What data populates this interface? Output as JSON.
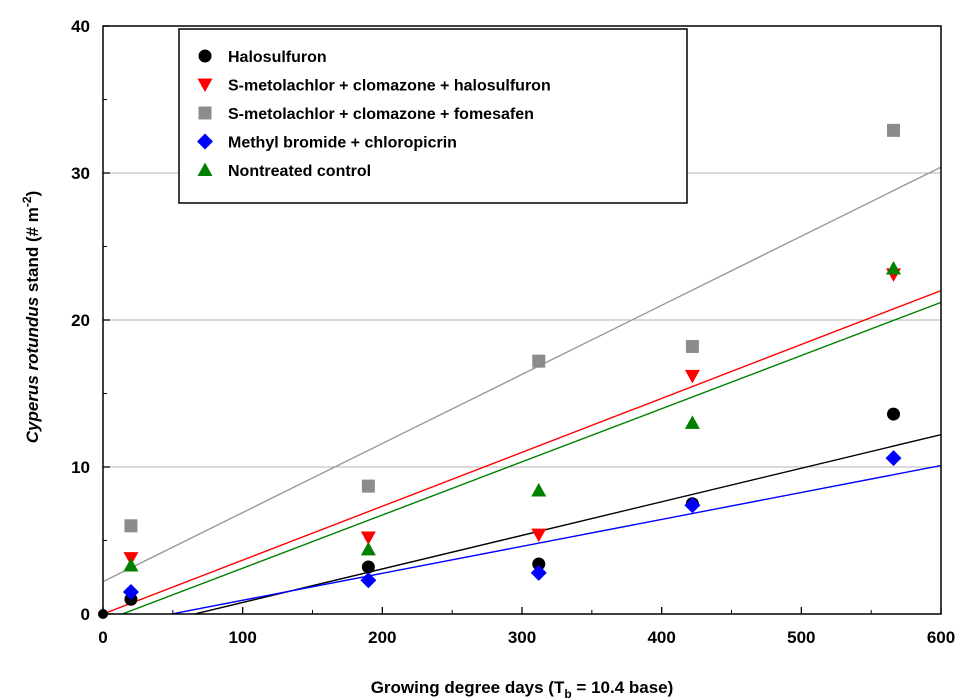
{
  "chart_data": {
    "type": "scatter",
    "xlabel_main": "Growing degree days (T",
    "xlabel_sub": "b",
    "xlabel_rest": " = 10.4 base)",
    "ylabel_pre": "Cyperus rotundus",
    "ylabel_mid": " stand (# m",
    "ylabel_sup": "-2",
    "ylabel_post": ")",
    "xlim": [
      0,
      600
    ],
    "ylim": [
      0,
      40
    ],
    "xticks": [
      0,
      100,
      200,
      300,
      400,
      500,
      600
    ],
    "yticks": [
      0,
      10,
      20,
      30,
      40
    ],
    "grid": "horizontal",
    "legend_position": "top-left",
    "series": [
      {
        "name": "Halosulfuron",
        "marker": "circle",
        "color": "#000000",
        "x": [
          20,
          190,
          312,
          422,
          566
        ],
        "y": [
          1.0,
          3.2,
          3.4,
          7.5,
          13.6
        ],
        "fit": {
          "x": [
            0,
            600
          ],
          "y": [
            -1.5,
            12.2
          ]
        }
      },
      {
        "name": "S-metolachlor + clomazone + halosulfuron",
        "marker": "triangle-down",
        "color": "#ff0000",
        "x": [
          20,
          190,
          312,
          422,
          566
        ],
        "y": [
          3.8,
          5.2,
          5.4,
          16.2,
          23.1
        ],
        "fit": {
          "x": [
            0,
            600
          ],
          "y": [
            0.0,
            22.0
          ]
        }
      },
      {
        "name": "S-metolachlor + clomazone + fomesafen",
        "marker": "square",
        "color": "#8c8c8c",
        "x": [
          20,
          190,
          312,
          422,
          566
        ],
        "y": [
          6.0,
          8.7,
          17.2,
          18.2,
          32.9
        ],
        "fit": {
          "x": [
            0,
            600
          ],
          "y": [
            2.2,
            30.4
          ]
        }
      },
      {
        "name": "Methyl bromide + chloropicrin",
        "marker": "diamond",
        "color": "#0000ff",
        "x": [
          20,
          190,
          312,
          422,
          566
        ],
        "y": [
          1.5,
          2.3,
          2.8,
          7.4,
          10.6
        ],
        "fit": {
          "x": [
            0,
            600
          ],
          "y": [
            -0.9,
            10.1
          ]
        }
      },
      {
        "name": "Nontreated control",
        "marker": "triangle-up",
        "color": "#008000",
        "x": [
          20,
          190,
          312,
          422,
          566
        ],
        "y": [
          3.3,
          4.4,
          8.4,
          13.0,
          23.5
        ],
        "fit": {
          "x": [
            0,
            600
          ],
          "y": [
            -0.5,
            21.2
          ]
        }
      }
    ]
  }
}
